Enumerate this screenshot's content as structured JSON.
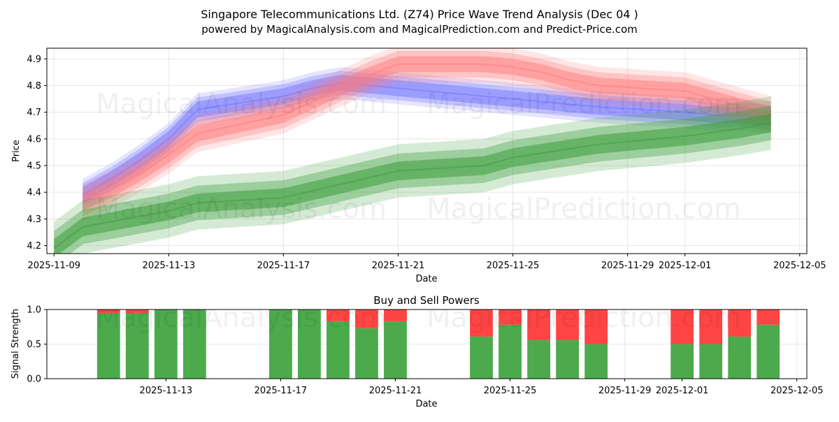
{
  "page": {
    "title_line1": "Singapore Telecommunications Ltd. (Z74) Price Wave Trend Analysis (Dec 04 )",
    "title_line2": "powered by MagicalAnalysis.com and MagicalPrediction.com and Predict-Price.com"
  },
  "watermarks": [
    "MagicalAnalysis.com",
    "MagicalPrediction.com"
  ],
  "colors": {
    "blue_band": "#6f6fff",
    "red_band": "#ff7777",
    "green_band": "#3a9d3a",
    "buy": "#4caa4c",
    "sell": "#ff4444",
    "grid": "#e6e6e6"
  },
  "chart_data": [
    {
      "type": "area",
      "title": "Price Wave Trend",
      "xlabel": "Date",
      "ylabel": "Price",
      "xlim": [
        "2025-11-09",
        "2025-12-05"
      ],
      "ylim": [
        4.17,
        4.94
      ],
      "x_ticks": [
        "2025-11-09",
        "2025-11-13",
        "2025-11-17",
        "2025-11-21",
        "2025-11-25",
        "2025-11-29",
        "2025-12-01",
        "2025-12-05"
      ],
      "y_ticks": [
        "4.2",
        "4.3",
        "4.4",
        "4.5",
        "4.6",
        "4.7",
        "4.8",
        "4.9"
      ],
      "series": [
        {
          "name": "blue-wave",
          "color": "#6f6fff",
          "x": [
            "2025-11-10",
            "2025-11-11",
            "2025-11-12",
            "2025-11-13",
            "2025-11-14",
            "2025-11-17",
            "2025-11-18",
            "2025-11-19",
            "2025-11-20",
            "2025-11-21",
            "2025-11-24",
            "2025-11-25",
            "2025-11-26",
            "2025-11-27",
            "2025-11-28",
            "2025-12-01",
            "2025-12-02",
            "2025-12-03",
            "2025-12-04"
          ],
          "values": [
            4.39,
            4.45,
            4.52,
            4.6,
            4.71,
            4.76,
            4.79,
            4.81,
            4.8,
            4.79,
            4.76,
            4.75,
            4.74,
            4.73,
            4.72,
            4.7,
            4.69,
            4.69,
            4.68
          ],
          "band_widths": [
            0.06,
            0.09,
            0.12
          ]
        },
        {
          "name": "red-wave",
          "color": "#ff7777",
          "x": [
            "2025-11-10",
            "2025-11-11",
            "2025-11-12",
            "2025-11-13",
            "2025-11-14",
            "2025-11-17",
            "2025-11-18",
            "2025-11-19",
            "2025-11-20",
            "2025-11-21",
            "2025-11-24",
            "2025-11-25",
            "2025-11-26",
            "2025-11-27",
            "2025-11-28",
            "2025-12-01",
            "2025-12-02",
            "2025-12-03",
            "2025-12-04"
          ],
          "values": [
            4.36,
            4.41,
            4.47,
            4.54,
            4.62,
            4.69,
            4.74,
            4.79,
            4.84,
            4.88,
            4.88,
            4.87,
            4.85,
            4.82,
            4.8,
            4.78,
            4.75,
            4.72,
            4.69
          ],
          "band_widths": [
            0.06,
            0.1,
            0.14
          ]
        },
        {
          "name": "green-wave",
          "color": "#3a9d3a",
          "x": [
            "2025-11-09",
            "2025-11-10",
            "2025-11-13",
            "2025-11-14",
            "2025-11-17",
            "2025-11-19",
            "2025-11-21",
            "2025-11-24",
            "2025-11-25",
            "2025-11-28",
            "2025-12-01",
            "2025-12-03",
            "2025-12-04"
          ],
          "values": [
            4.19,
            4.27,
            4.33,
            4.36,
            4.38,
            4.43,
            4.48,
            4.5,
            4.53,
            4.58,
            4.61,
            4.64,
            4.66
          ],
          "band_widths": [
            0.07,
            0.13,
            0.2
          ]
        }
      ]
    },
    {
      "type": "bar",
      "title": "Buy and Sell Powers",
      "xlabel": "Date",
      "ylabel": "Signal Strength",
      "xlim": [
        "2025-11-09",
        "2025-12-05"
      ],
      "ylim": [
        0,
        1
      ],
      "x_ticks": [
        "2025-11-13",
        "2025-11-17",
        "2025-11-21",
        "2025-11-25",
        "2025-11-29",
        "2025-12-01",
        "2025-12-05"
      ],
      "y_ticks": [
        "0.0",
        "0.5",
        "1.0"
      ],
      "categories": [
        "2025-11-11",
        "2025-11-12",
        "2025-11-13",
        "2025-11-14",
        "2025-11-17",
        "2025-11-18",
        "2025-11-19",
        "2025-11-20",
        "2025-11-21",
        "2025-11-24",
        "2025-11-25",
        "2025-11-26",
        "2025-11-27",
        "2025-11-28",
        "2025-12-01",
        "2025-12-02",
        "2025-12-03",
        "2025-12-04"
      ],
      "series": [
        {
          "name": "Buy",
          "color": "#4caa4c",
          "values": [
            0.95,
            0.95,
            1.0,
            1.0,
            1.0,
            1.0,
            0.83,
            0.73,
            0.83,
            0.61,
            0.78,
            0.56,
            0.56,
            0.5,
            0.5,
            0.5,
            0.61,
            0.78
          ]
        },
        {
          "name": "Sell",
          "color": "#ff4444",
          "values": [
            0.05,
            0.05,
            0.0,
            0.0,
            0.0,
            0.0,
            0.17,
            0.27,
            0.17,
            0.39,
            0.22,
            0.44,
            0.44,
            0.5,
            0.5,
            0.5,
            0.39,
            0.22
          ]
        }
      ]
    }
  ]
}
